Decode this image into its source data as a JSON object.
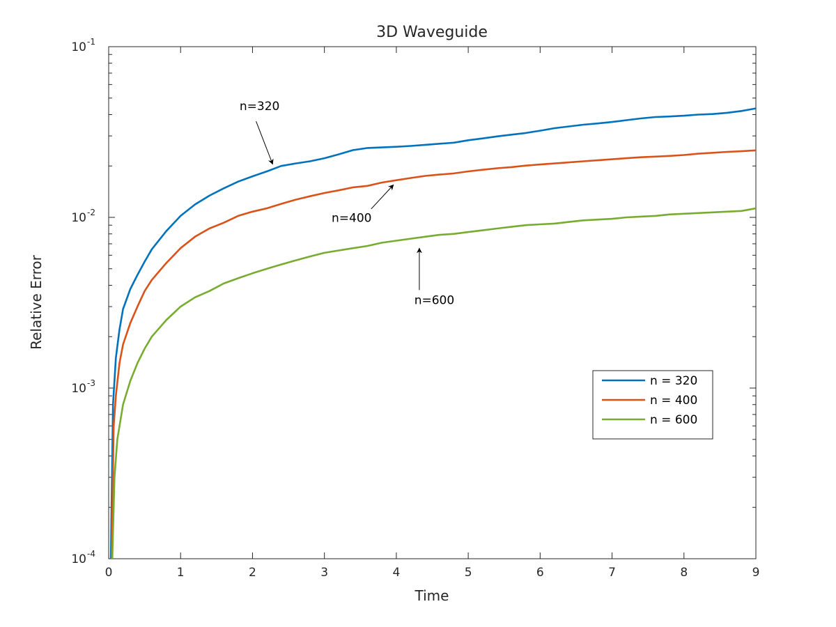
{
  "chart_data": {
    "type": "line",
    "title": "3D Waveguide",
    "xlabel": "Time",
    "ylabel": "Relative Error",
    "xlim": [
      0,
      9
    ],
    "ylim": [
      0.0001,
      0.1
    ],
    "yscale": "log",
    "grid": false,
    "legend_position": "right",
    "x_ticks": [
      "0",
      "1",
      "2",
      "3",
      "4",
      "5",
      "6",
      "7",
      "8",
      "9"
    ],
    "y_ticks": [
      {
        "base": "10",
        "exp": "-4",
        "value": 0.0001
      },
      {
        "base": "10",
        "exp": "-3",
        "value": 0.001
      },
      {
        "base": "10",
        "exp": "-2",
        "value": 0.01
      },
      {
        "base": "10",
        "exp": "-1",
        "value": 0.1
      }
    ],
    "series": [
      {
        "name": "n = 320",
        "color": "#0072BD",
        "x": [
          0.03,
          0.06,
          0.1,
          0.15,
          0.2,
          0.3,
          0.4,
          0.5,
          0.6,
          0.8,
          1.0,
          1.2,
          1.4,
          1.6,
          1.8,
          2.0,
          2.2,
          2.4,
          2.6,
          2.8,
          3.0,
          3.2,
          3.4,
          3.6,
          3.8,
          4.0,
          4.2,
          4.4,
          4.6,
          4.8,
          5.0,
          5.2,
          5.4,
          5.6,
          5.8,
          6.0,
          6.2,
          6.4,
          6.6,
          6.8,
          7.0,
          7.2,
          7.4,
          7.6,
          7.8,
          8.0,
          8.2,
          8.4,
          8.6,
          8.8,
          9.0
        ],
        "y": [
          0.0001,
          0.0008,
          0.0015,
          0.0022,
          0.0029,
          0.0038,
          0.0046,
          0.0055,
          0.0065,
          0.0083,
          0.0102,
          0.0119,
          0.0134,
          0.0148,
          0.0162,
          0.0174,
          0.0186,
          0.02,
          0.0207,
          0.0213,
          0.0222,
          0.0234,
          0.0248,
          0.0255,
          0.0257,
          0.0259,
          0.0262,
          0.0266,
          0.027,
          0.0274,
          0.0283,
          0.029,
          0.0298,
          0.0305,
          0.0312,
          0.0322,
          0.0333,
          0.0341,
          0.0349,
          0.0355,
          0.0362,
          0.0371,
          0.038,
          0.0387,
          0.039,
          0.0394,
          0.04,
          0.0403,
          0.041,
          0.042,
          0.0435
        ]
      },
      {
        "name": "n = 400",
        "color": "#D95319",
        "x": [
          0.04,
          0.07,
          0.1,
          0.15,
          0.2,
          0.3,
          0.4,
          0.5,
          0.6,
          0.8,
          1.0,
          1.2,
          1.4,
          1.6,
          1.8,
          2.0,
          2.2,
          2.4,
          2.6,
          2.8,
          3.0,
          3.2,
          3.4,
          3.6,
          3.8,
          4.0,
          4.2,
          4.4,
          4.6,
          4.8,
          5.0,
          5.2,
          5.4,
          5.6,
          5.8,
          6.0,
          6.2,
          6.4,
          6.6,
          6.8,
          7.0,
          7.2,
          7.4,
          7.6,
          7.8,
          8.0,
          8.2,
          8.4,
          8.6,
          8.8,
          9.0
        ],
        "y": [
          0.0001,
          0.0006,
          0.0009,
          0.0014,
          0.0018,
          0.0024,
          0.003,
          0.0037,
          0.0043,
          0.0054,
          0.0066,
          0.0077,
          0.0086,
          0.0093,
          0.0102,
          0.0108,
          0.0113,
          0.012,
          0.0127,
          0.0133,
          0.0139,
          0.0144,
          0.015,
          0.0153,
          0.016,
          0.0165,
          0.017,
          0.0175,
          0.0178,
          0.0181,
          0.0186,
          0.019,
          0.0194,
          0.0197,
          0.0201,
          0.0204,
          0.0207,
          0.021,
          0.0213,
          0.0216,
          0.0219,
          0.0222,
          0.0225,
          0.0227,
          0.0229,
          0.0232,
          0.0236,
          0.0239,
          0.0242,
          0.0244,
          0.0247
        ]
      },
      {
        "name": "n = 600",
        "color": "#77AC30",
        "x": [
          0.05,
          0.08,
          0.12,
          0.2,
          0.3,
          0.4,
          0.5,
          0.6,
          0.8,
          1.0,
          1.2,
          1.4,
          1.6,
          1.8,
          2.0,
          2.2,
          2.4,
          2.6,
          2.8,
          3.0,
          3.2,
          3.4,
          3.6,
          3.8,
          4.0,
          4.2,
          4.4,
          4.6,
          4.8,
          5.0,
          5.2,
          5.4,
          5.6,
          5.8,
          6.0,
          6.2,
          6.4,
          6.6,
          6.8,
          7.0,
          7.2,
          7.4,
          7.6,
          7.8,
          8.0,
          8.2,
          8.4,
          8.6,
          8.8,
          9.0
        ],
        "y": [
          0.0001,
          0.0003,
          0.0005,
          0.0008,
          0.0011,
          0.0014,
          0.0017,
          0.002,
          0.0025,
          0.003,
          0.0034,
          0.0037,
          0.0041,
          0.0044,
          0.0047,
          0.005,
          0.0053,
          0.0056,
          0.0059,
          0.0062,
          0.0064,
          0.0066,
          0.0068,
          0.0071,
          0.0073,
          0.0075,
          0.0077,
          0.0079,
          0.008,
          0.0082,
          0.0084,
          0.0086,
          0.0088,
          0.009,
          0.0091,
          0.0092,
          0.0094,
          0.0096,
          0.0097,
          0.0098,
          0.01,
          0.0101,
          0.0102,
          0.0104,
          0.0105,
          0.0106,
          0.0107,
          0.0108,
          0.0109,
          0.0113
        ]
      }
    ],
    "annotations": [
      {
        "text": "n=320",
        "text_x": 1.82,
        "text_y": 0.0425,
        "arrow_from": [
          2.05,
          0.0365
        ],
        "arrow_to": [
          2.28,
          0.0205
        ]
      },
      {
        "text": "n=400",
        "text_x": 3.1,
        "text_y": 0.0094,
        "arrow_from": [
          3.65,
          0.0112
        ],
        "arrow_to": [
          3.96,
          0.0155
        ]
      },
      {
        "text": "n=600",
        "text_x": 4.25,
        "text_y": 0.0031,
        "arrow_from": [
          4.32,
          0.00375
        ],
        "arrow_to": [
          4.32,
          0.0066
        ]
      }
    ]
  }
}
